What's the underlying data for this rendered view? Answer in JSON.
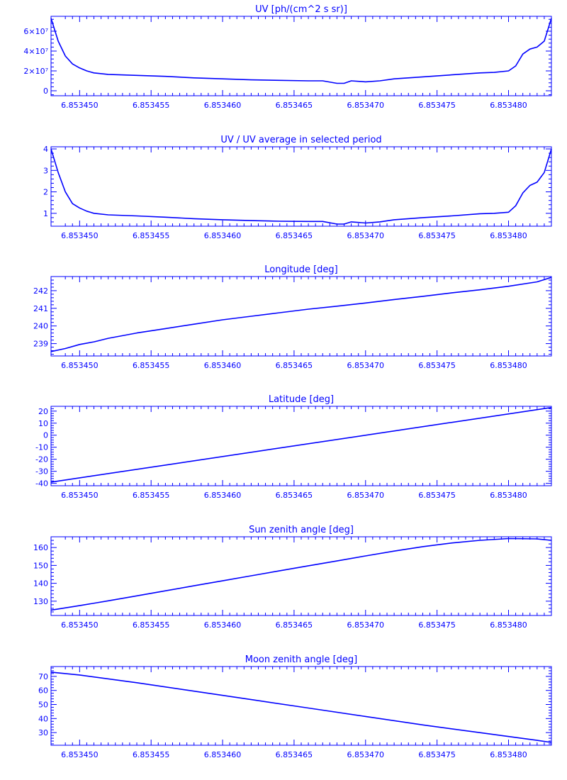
{
  "colors": {
    "ink": "#0000ff",
    "background": "#ffffff"
  },
  "x_ticks": [
    6.85345,
    6.853455,
    6.85346,
    6.853465,
    6.85347,
    6.853475,
    6.85348
  ],
  "x_tick_labels": [
    "6.853450",
    "6.853455",
    "6.853460",
    "6.853465",
    "6.853470",
    "6.853475",
    "6.853480"
  ],
  "chart_data": [
    {
      "type": "line",
      "title": "UV [ph/(cm^2 s sr)]",
      "xlim": [
        6.853448,
        6.853483
      ],
      "ylim": [
        -0.5,
        7.5
      ],
      "y_ticks": [
        0,
        2,
        4,
        6
      ],
      "y_tick_labels": [
        "0",
        "2×10⁷",
        "4×10⁷",
        "6×10⁷"
      ],
      "y_scale_note": "values in units of 1e7",
      "series": [
        {
          "x": [
            6.853448,
            6.8534485,
            6.853449,
            6.8534495,
            6.85345,
            6.8534505,
            6.853451,
            6.853452,
            6.853454,
            6.853456,
            6.853458,
            6.85346,
            6.853462,
            6.853464,
            6.853466,
            6.853467,
            6.853468,
            6.8534685,
            6.853469,
            6.85347,
            6.853471,
            6.853472,
            6.853474,
            6.853476,
            6.853478,
            6.853479,
            6.85348,
            6.8534805,
            6.853481,
            6.8534815,
            6.853482,
            6.8534825,
            6.853483
          ],
          "y": [
            7.3,
            5.0,
            3.5,
            2.7,
            2.3,
            2.0,
            1.8,
            1.65,
            1.55,
            1.45,
            1.3,
            1.2,
            1.1,
            1.05,
            1.0,
            1.0,
            0.75,
            0.75,
            1.0,
            0.9,
            1.0,
            1.2,
            1.4,
            1.6,
            1.8,
            1.85,
            2.0,
            2.5,
            3.7,
            4.2,
            4.4,
            5.0,
            7.3
          ]
        }
      ]
    },
    {
      "type": "line",
      "title": "UV / UV average in selected period",
      "xlim": [
        6.853448,
        6.853483
      ],
      "ylim": [
        0.4,
        4.1
      ],
      "y_ticks": [
        1,
        2,
        3,
        4
      ],
      "y_tick_labels": [
        "1",
        "2",
        "3",
        "4"
      ],
      "series": [
        {
          "x": [
            6.853448,
            6.8534485,
            6.853449,
            6.8534495,
            6.85345,
            6.8534505,
            6.853451,
            6.853452,
            6.853454,
            6.853456,
            6.853458,
            6.85346,
            6.853462,
            6.853464,
            6.853466,
            6.853467,
            6.853468,
            6.8534685,
            6.853469,
            6.85347,
            6.853471,
            6.853472,
            6.853474,
            6.853476,
            6.853478,
            6.853479,
            6.85348,
            6.8534805,
            6.853481,
            6.8534815,
            6.853482,
            6.8534825,
            6.853483
          ],
          "y": [
            4.0,
            2.9,
            2.0,
            1.45,
            1.25,
            1.1,
            1.0,
            0.93,
            0.88,
            0.82,
            0.75,
            0.7,
            0.66,
            0.63,
            0.62,
            0.62,
            0.5,
            0.5,
            0.6,
            0.55,
            0.6,
            0.7,
            0.8,
            0.88,
            0.98,
            1.0,
            1.05,
            1.35,
            1.95,
            2.3,
            2.45,
            2.9,
            4.0
          ]
        }
      ]
    },
    {
      "type": "line",
      "title": "Longitude [deg]",
      "xlim": [
        6.853448,
        6.853483
      ],
      "ylim": [
        238.3,
        242.8
      ],
      "y_ticks": [
        239,
        240,
        241,
        242
      ],
      "y_tick_labels": [
        "239",
        "240",
        "241",
        "242"
      ],
      "series": [
        {
          "x": [
            6.853448,
            6.853449,
            6.85345,
            6.853451,
            6.853452,
            6.853454,
            6.853456,
            6.853458,
            6.85346,
            6.853462,
            6.853464,
            6.853466,
            6.853468,
            6.85347,
            6.853472,
            6.853474,
            6.853476,
            6.853478,
            6.85348,
            6.853482,
            6.853483
          ],
          "y": [
            238.55,
            238.72,
            238.95,
            239.1,
            239.3,
            239.6,
            239.85,
            240.1,
            240.35,
            240.55,
            240.75,
            240.95,
            241.12,
            241.3,
            241.5,
            241.68,
            241.87,
            242.05,
            242.25,
            242.5,
            242.75
          ]
        }
      ]
    },
    {
      "type": "line",
      "title": "Latitude [deg]",
      "xlim": [
        6.853448,
        6.853483
      ],
      "ylim": [
        -42,
        24
      ],
      "y_ticks": [
        -40,
        -30,
        -20,
        -10,
        0,
        10,
        20
      ],
      "y_tick_labels": [
        "-40",
        "-30",
        "-20",
        "-10",
        "0",
        "10",
        "20"
      ],
      "series": [
        {
          "x": [
            6.853448,
            6.853483
          ],
          "y": [
            -39,
            23
          ]
        }
      ]
    },
    {
      "type": "line",
      "title": "Sun zenith angle [deg]",
      "xlim": [
        6.853448,
        6.853483
      ],
      "ylim": [
        122,
        166
      ],
      "y_ticks": [
        130,
        140,
        150,
        160
      ],
      "y_tick_labels": [
        "130",
        "140",
        "150",
        "160"
      ],
      "series": [
        {
          "x": [
            6.853448,
            6.85345,
            6.853452,
            6.853454,
            6.853456,
            6.853458,
            6.85346,
            6.853462,
            6.853464,
            6.853466,
            6.853468,
            6.85347,
            6.853472,
            6.853474,
            6.853476,
            6.853478,
            6.85348,
            6.853482,
            6.853483
          ],
          "y": [
            125,
            127.5,
            130.2,
            133,
            135.8,
            138.6,
            141.4,
            144.2,
            147,
            149.8,
            152.5,
            155.3,
            158,
            160.5,
            162.5,
            164,
            165,
            164.8,
            164
          ]
        }
      ]
    },
    {
      "type": "line",
      "title": "Moon zenith angle [deg]",
      "xlim": [
        6.853448,
        6.853483
      ],
      "ylim": [
        21,
        77
      ],
      "y_ticks": [
        30,
        40,
        50,
        60,
        70
      ],
      "y_tick_labels": [
        "30",
        "40",
        "50",
        "60",
        "70"
      ],
      "series": [
        {
          "x": [
            6.853448,
            6.85345,
            6.853454,
            6.853458,
            6.853462,
            6.853466,
            6.85347,
            6.853474,
            6.853478,
            6.853482,
            6.853483
          ],
          "y": [
            73,
            71,
            65.5,
            59.5,
            53.5,
            47.5,
            41.5,
            35.5,
            30,
            24.5,
            23
          ]
        }
      ]
    }
  ]
}
